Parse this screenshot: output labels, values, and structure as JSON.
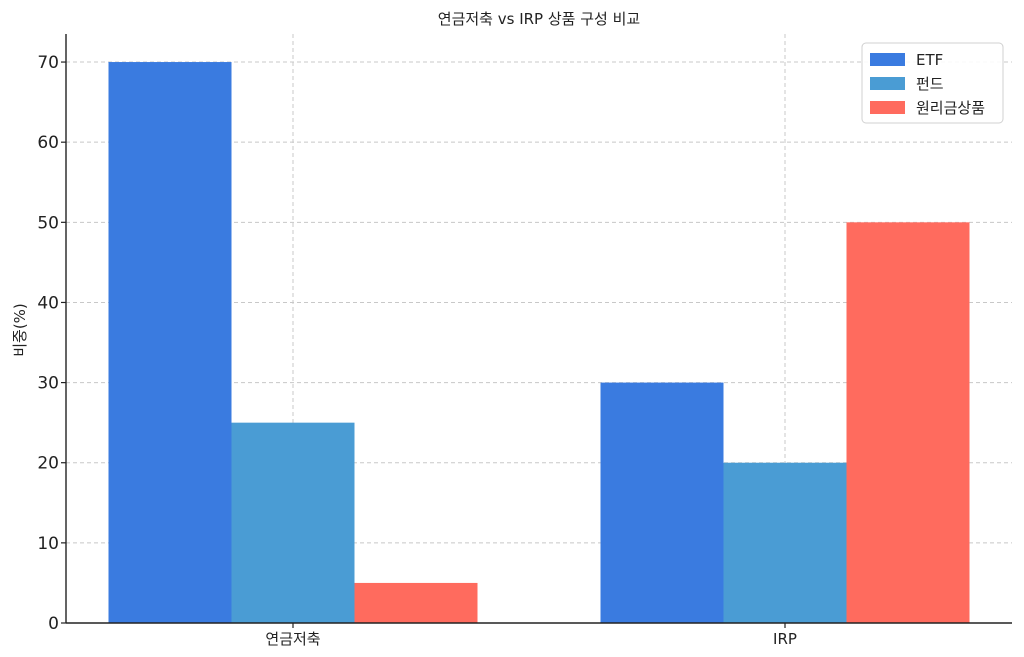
{
  "chart_data": {
    "type": "bar",
    "title": "연금저축 vs IRP 상품 구성 비교",
    "xlabel": "",
    "ylabel": "비중(%)",
    "categories": [
      "연금저축",
      "IRP"
    ],
    "series": [
      {
        "name": "ETF",
        "values": [
          70,
          30
        ],
        "color": "#3a7be0"
      },
      {
        "name": "펀드",
        "values": [
          25,
          20
        ],
        "color": "#4a9cd4"
      },
      {
        "name": "원리금상품",
        "values": [
          5,
          50
        ],
        "color": "#ff6b5e"
      }
    ],
    "ylim": [
      0,
      73.5
    ],
    "yticks": [
      0,
      10,
      20,
      30,
      40,
      50,
      60,
      70
    ],
    "grid": true,
    "legend_position": "top-right"
  }
}
